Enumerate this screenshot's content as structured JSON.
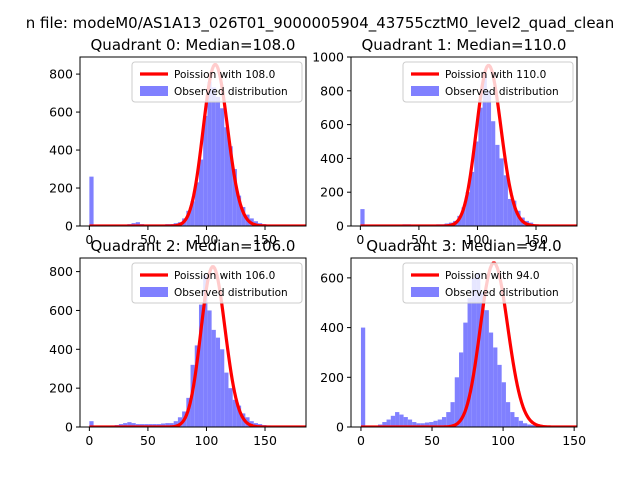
{
  "figure": {
    "suptitle": "n file: modeM0/AS1A13_026T01_9000005904_43755cztM0_level2_quad_clean"
  },
  "legend_labels": {
    "poisson_prefix": "Poission with ",
    "observed": "Observed distribution"
  },
  "colors": {
    "histogram": "#8080ff",
    "poisson": "#ff0000",
    "axes": "#000000"
  },
  "chart_data": [
    {
      "type": "bar",
      "title": "Quadrant 0: Median=108.0",
      "median": 108.0,
      "poisson_label": "Poission with 108.0",
      "legend_position": "top-right",
      "grid": false,
      "xlim": [
        -8,
        185
      ],
      "ylim": [
        0,
        890
      ],
      "xticks": [
        0,
        50,
        100,
        150
      ],
      "yticks": [
        0,
        200,
        400,
        600,
        800
      ],
      "bin_start": 0,
      "bin_width": 3.6,
      "values": [
        260,
        5,
        5,
        5,
        5,
        5,
        5,
        5,
        5,
        10,
        15,
        20,
        10,
        8,
        8,
        8,
        8,
        8,
        10,
        10,
        15,
        20,
        40,
        80,
        130,
        230,
        350,
        580,
        760,
        730,
        680,
        620,
        520,
        420,
        300,
        160,
        100,
        60,
        40,
        25,
        15,
        10,
        8,
        5,
        5,
        5,
        5,
        5,
        5,
        5
      ],
      "poisson_max": 850
    },
    {
      "type": "bar",
      "title": "Quadrant 1: Median=110.0",
      "median": 110.0,
      "poisson_label": "Poission with 110.0",
      "legend_position": "top-right",
      "grid": false,
      "xlim": [
        -8,
        185
      ],
      "ylim": [
        0,
        1000
      ],
      "xticks": [
        0,
        50,
        100,
        150
      ],
      "yticks": [
        0,
        200,
        400,
        600,
        800,
        1000
      ],
      "bin_start": 0,
      "bin_width": 3.6,
      "values": [
        100,
        5,
        5,
        5,
        5,
        5,
        5,
        5,
        5,
        8,
        10,
        10,
        8,
        8,
        8,
        8,
        8,
        8,
        10,
        10,
        15,
        20,
        30,
        60,
        110,
        200,
        320,
        500,
        700,
        900,
        800,
        620,
        480,
        400,
        300,
        160,
        150,
        90,
        50,
        30,
        20,
        10,
        8,
        5,
        5,
        5,
        5,
        5,
        5,
        5
      ],
      "poisson_max": 950
    },
    {
      "type": "bar",
      "title": "Quadrant 2: Median=106.0",
      "median": 106.0,
      "poisson_label": "Poission with 106.0",
      "legend_position": "top-right",
      "grid": false,
      "xlim": [
        -8,
        185
      ],
      "ylim": [
        0,
        870
      ],
      "xticks": [
        0,
        50,
        100,
        150
      ],
      "yticks": [
        0,
        200,
        400,
        600,
        800
      ],
      "bin_start": 0,
      "bin_width": 3.6,
      "values": [
        30,
        5,
        5,
        5,
        5,
        8,
        10,
        15,
        20,
        25,
        20,
        15,
        15,
        15,
        15,
        15,
        15,
        18,
        20,
        20,
        30,
        50,
        80,
        150,
        320,
        420,
        630,
        780,
        600,
        500,
        460,
        400,
        280,
        200,
        140,
        110,
        70,
        50,
        30,
        20,
        15,
        10,
        8,
        5,
        5,
        5,
        5,
        5,
        5,
        5
      ],
      "poisson_max": 825
    },
    {
      "type": "bar",
      "title": "Quadrant 3: Median=94.0",
      "median": 94.0,
      "poisson_label": "Poission with 94.0",
      "legend_position": "top-right",
      "grid": false,
      "xlim": [
        -7,
        152
      ],
      "ylim": [
        0,
        680
      ],
      "xticks": [
        0,
        50,
        100,
        150
      ],
      "yticks": [
        0,
        200,
        400,
        600
      ],
      "bin_start": 0,
      "bin_width": 3.0,
      "values": [
        400,
        5,
        5,
        5,
        10,
        20,
        30,
        45,
        60,
        50,
        40,
        30,
        20,
        15,
        15,
        18,
        20,
        25,
        30,
        40,
        60,
        100,
        200,
        300,
        420,
        520,
        600,
        620,
        540,
        470,
        380,
        320,
        250,
        180,
        100,
        60,
        40,
        25,
        15,
        10,
        8,
        5,
        5,
        5,
        5,
        5,
        5,
        5
      ],
      "poisson_max": 660
    }
  ]
}
